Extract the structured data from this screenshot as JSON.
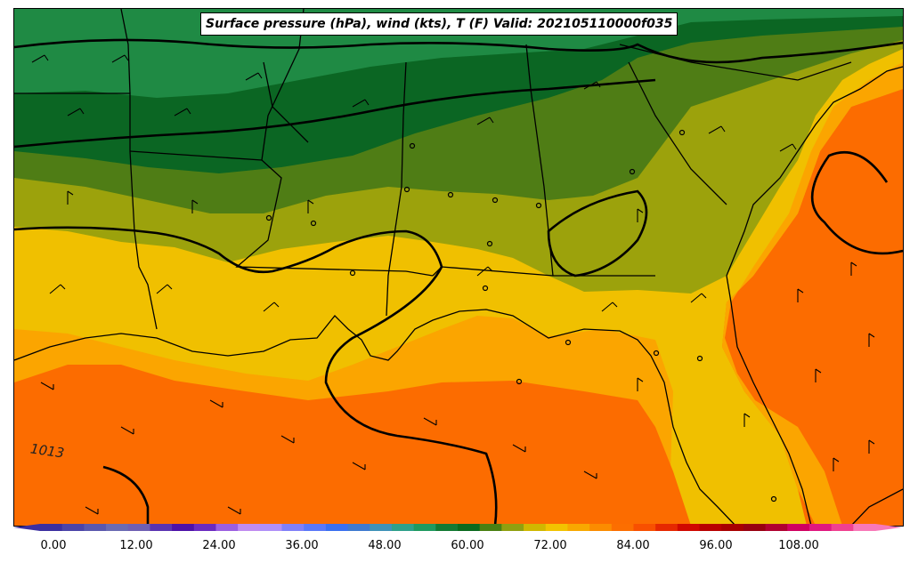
{
  "title": "Surface pressure (hPa), wind (kts), T (F) Valid: 202105110000f035",
  "isobar_label": "1013",
  "colorbar": {
    "ticks": [
      "0.00",
      "12.00",
      "24.00",
      "36.00",
      "48.00",
      "60.00",
      "72.00",
      "84.00",
      "96.00",
      "108.00"
    ],
    "colors": [
      "#3b2fa0",
      "#4b44a8",
      "#5a58ae",
      "#6a6bb3",
      "#6f5fb3",
      "#5a34b2",
      "#4d12a8",
      "#6b2bc0",
      "#9b5fe0",
      "#c08cf0",
      "#b090f8",
      "#8080f8",
      "#5a78f8",
      "#3a70f0",
      "#3e7ad0",
      "#3e92b8",
      "#2fa08a",
      "#1f9a60",
      "#137a34",
      "#0b6a1e",
      "#4a8012",
      "#90a010",
      "#d0b800",
      "#f2c300",
      "#f8a800",
      "#fb8c00",
      "#fc6e00",
      "#f85000",
      "#e62800",
      "#d00800",
      "#b80000",
      "#a80000",
      "#980010",
      "#b00030",
      "#d00060",
      "#e01880",
      "#f04090",
      "#f878b8"
    ]
  },
  "colors": {
    "dark_green": "#0b6623",
    "mid_green": "#1f8a44",
    "olive_green": "#4f7d15",
    "olive": "#9ca20c",
    "yellow": "#f0c000",
    "light_orange": "#fba500",
    "orange": "#fc6c00"
  }
}
